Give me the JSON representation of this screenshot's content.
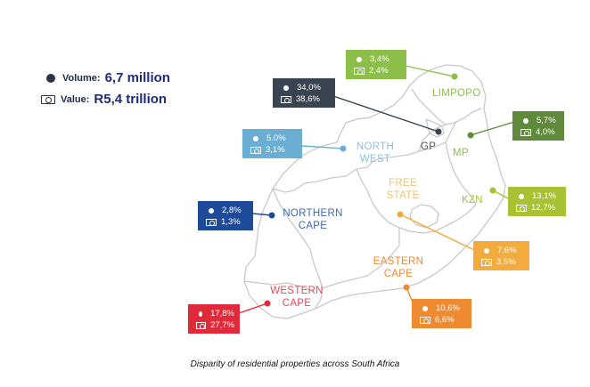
{
  "legend": {
    "volume_label": "Volume:",
    "volume_value": "6,7 million",
    "value_label": "Value:",
    "value_value": "R5,4 trillion"
  },
  "caption": "Disparity of residential properties across South Africa",
  "regions": {
    "limpopo": {
      "name": "LIMPOPO",
      "volume": "3,4%",
      "value": "2,4%",
      "color": "#8cbf4a"
    },
    "gp": {
      "name": "GP",
      "volume": "34,0%",
      "value": "38,6%",
      "color": "#3a4450"
    },
    "mp": {
      "name": "MP",
      "volume": "5,7%",
      "value": "4,0%",
      "color": "#5f8a3c"
    },
    "northwest": {
      "name": "NORTH WEST",
      "volume": "5.0%",
      "value": "3,1%",
      "color": "#6aaed4"
    },
    "kzn": {
      "name": "KZN",
      "volume": "13,1%",
      "value": "12,7%",
      "color": "#a8c234"
    },
    "freestate": {
      "name": "FREE STATE",
      "volume": "7,6%",
      "value": "3,5%",
      "color": "#f2ab3c"
    },
    "northerncape": {
      "name": "NORTHERN CAPE",
      "volume": "2,8%",
      "value": "1,3%",
      "color": "#1e4a9a"
    },
    "easterncape": {
      "name": "EASTERN CAPE",
      "volume": "10,6%",
      "value": "6,6%",
      "color": "#f08a30"
    },
    "westerncape": {
      "name": "WESTERN CAPE",
      "volume": "17,8%",
      "value": "27,7%",
      "color": "#e02a3a"
    }
  }
}
